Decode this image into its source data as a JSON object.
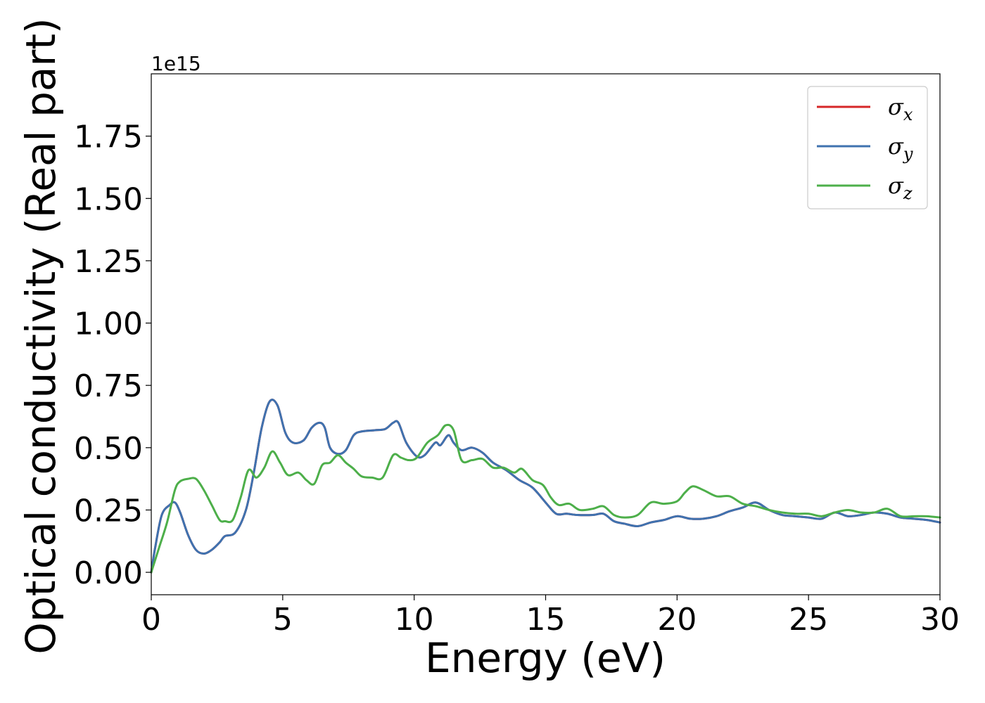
{
  "chart_data": {
    "type": "line",
    "xlabel": "Energy (eV)",
    "ylabel": "Optical conductivity (Real part)",
    "y_multiplier_label": "1e15",
    "xlim": [
      0,
      30
    ],
    "ylim": [
      -0.09,
      2.0
    ],
    "x_ticks": [
      0,
      5,
      10,
      15,
      20,
      25,
      30
    ],
    "x_tick_labels": [
      "0",
      "5",
      "10",
      "15",
      "20",
      "25",
      "30"
    ],
    "y_ticks": [
      0.0,
      0.25,
      0.5,
      0.75,
      1.0,
      1.25,
      1.5,
      1.75
    ],
    "y_tick_labels": [
      "0.00",
      "0.25",
      "0.50",
      "0.75",
      "1.00",
      "1.25",
      "1.50",
      "1.75"
    ],
    "grid": false,
    "legend_position": "top-right",
    "series": [
      {
        "name": "σx",
        "sub": "x",
        "color": "#d62728",
        "x": [
          0,
          0.15,
          0.4,
          0.7,
          0.9,
          1.1,
          1.4,
          1.7,
          2.0,
          2.3,
          2.6,
          2.8,
          3.2,
          3.6,
          3.9,
          4.2,
          4.5,
          4.8,
          5.1,
          5.4,
          5.8,
          6.1,
          6.4,
          6.6,
          6.8,
          7.1,
          7.4,
          7.7,
          8.0,
          8.5,
          8.9,
          9.2,
          9.4,
          9.7,
          10.1,
          10.4,
          10.8,
          11.0,
          11.3,
          11.5,
          11.8,
          12.2,
          12.6,
          13.0,
          13.5,
          14.0,
          14.5,
          15.0,
          15.4,
          15.8,
          16.2,
          16.8,
          17.2,
          17.6,
          18.0,
          18.5,
          19.0,
          19.5,
          20.0,
          20.5,
          21.0,
          21.5,
          22.0,
          22.5,
          23.0,
          23.5,
          24.0,
          24.5,
          25.0,
          25.5,
          26.0,
          26.5,
          27.0,
          27.5,
          28.0,
          28.5,
          29.0,
          29.5,
          30.0
        ],
        "values": [
          0.0,
          0.1,
          0.23,
          0.27,
          0.28,
          0.24,
          0.15,
          0.09,
          0.075,
          0.09,
          0.12,
          0.145,
          0.16,
          0.25,
          0.4,
          0.58,
          0.685,
          0.67,
          0.56,
          0.52,
          0.53,
          0.58,
          0.6,
          0.58,
          0.5,
          0.475,
          0.49,
          0.55,
          0.565,
          0.57,
          0.575,
          0.6,
          0.6,
          0.52,
          0.465,
          0.47,
          0.52,
          0.51,
          0.55,
          0.52,
          0.49,
          0.5,
          0.48,
          0.44,
          0.41,
          0.37,
          0.34,
          0.28,
          0.235,
          0.235,
          0.23,
          0.23,
          0.235,
          0.205,
          0.195,
          0.185,
          0.2,
          0.21,
          0.225,
          0.215,
          0.215,
          0.225,
          0.245,
          0.26,
          0.28,
          0.25,
          0.23,
          0.225,
          0.22,
          0.215,
          0.24,
          0.225,
          0.23,
          0.24,
          0.235,
          0.22,
          0.215,
          0.21,
          0.2
        ]
      },
      {
        "name": "σy",
        "sub": "y",
        "color": "#3f72af",
        "x": [
          0,
          0.15,
          0.4,
          0.7,
          0.9,
          1.1,
          1.4,
          1.7,
          2.0,
          2.3,
          2.6,
          2.8,
          3.2,
          3.6,
          3.9,
          4.2,
          4.5,
          4.8,
          5.1,
          5.4,
          5.8,
          6.1,
          6.4,
          6.6,
          6.8,
          7.1,
          7.4,
          7.7,
          8.0,
          8.5,
          8.9,
          9.2,
          9.4,
          9.7,
          10.1,
          10.4,
          10.8,
          11.0,
          11.3,
          11.5,
          11.8,
          12.2,
          12.6,
          13.0,
          13.5,
          14.0,
          14.5,
          15.0,
          15.4,
          15.8,
          16.2,
          16.8,
          17.2,
          17.6,
          18.0,
          18.5,
          19.0,
          19.5,
          20.0,
          20.5,
          21.0,
          21.5,
          22.0,
          22.5,
          23.0,
          23.5,
          24.0,
          24.5,
          25.0,
          25.5,
          26.0,
          26.5,
          27.0,
          27.5,
          28.0,
          28.5,
          29.0,
          29.5,
          30.0
        ],
        "values": [
          0.0,
          0.1,
          0.23,
          0.27,
          0.28,
          0.24,
          0.15,
          0.09,
          0.075,
          0.09,
          0.12,
          0.145,
          0.16,
          0.25,
          0.4,
          0.58,
          0.685,
          0.67,
          0.56,
          0.52,
          0.53,
          0.58,
          0.6,
          0.58,
          0.5,
          0.475,
          0.49,
          0.55,
          0.565,
          0.57,
          0.575,
          0.6,
          0.6,
          0.52,
          0.465,
          0.47,
          0.52,
          0.51,
          0.55,
          0.52,
          0.49,
          0.5,
          0.48,
          0.44,
          0.41,
          0.37,
          0.34,
          0.28,
          0.235,
          0.235,
          0.23,
          0.23,
          0.235,
          0.205,
          0.195,
          0.185,
          0.2,
          0.21,
          0.225,
          0.215,
          0.215,
          0.225,
          0.245,
          0.26,
          0.28,
          0.25,
          0.23,
          0.225,
          0.22,
          0.215,
          0.24,
          0.225,
          0.23,
          0.24,
          0.235,
          0.22,
          0.215,
          0.21,
          0.2
        ]
      },
      {
        "name": "σz",
        "sub": "z",
        "color": "#4daf4a",
        "x": [
          0,
          0.3,
          0.6,
          0.9,
          1.1,
          1.4,
          1.7,
          2.0,
          2.3,
          2.6,
          2.8,
          3.1,
          3.4,
          3.7,
          4.0,
          4.3,
          4.6,
          4.9,
          5.2,
          5.6,
          5.9,
          6.2,
          6.5,
          6.8,
          7.1,
          7.4,
          7.7,
          8.0,
          8.4,
          8.8,
          9.2,
          9.5,
          9.8,
          10.1,
          10.5,
          10.9,
          11.2,
          11.5,
          11.8,
          12.2,
          12.6,
          13.0,
          13.4,
          13.8,
          14.1,
          14.5,
          14.9,
          15.2,
          15.5,
          15.9,
          16.3,
          16.8,
          17.2,
          17.6,
          18.0,
          18.5,
          19.0,
          19.5,
          20.0,
          20.3,
          20.6,
          21.0,
          21.5,
          22.0,
          22.5,
          23.0,
          23.5,
          24.0,
          24.5,
          25.0,
          25.5,
          26.0,
          26.5,
          27.0,
          27.5,
          28.0,
          28.5,
          29.0,
          29.5,
          30.0
        ],
        "values": [
          0.0,
          0.1,
          0.2,
          0.33,
          0.365,
          0.375,
          0.375,
          0.33,
          0.27,
          0.21,
          0.205,
          0.21,
          0.3,
          0.41,
          0.38,
          0.42,
          0.485,
          0.44,
          0.39,
          0.4,
          0.37,
          0.355,
          0.43,
          0.44,
          0.47,
          0.44,
          0.415,
          0.385,
          0.38,
          0.38,
          0.47,
          0.46,
          0.45,
          0.46,
          0.52,
          0.55,
          0.59,
          0.57,
          0.45,
          0.45,
          0.455,
          0.42,
          0.42,
          0.4,
          0.415,
          0.37,
          0.35,
          0.3,
          0.27,
          0.275,
          0.25,
          0.255,
          0.265,
          0.23,
          0.22,
          0.23,
          0.28,
          0.275,
          0.285,
          0.32,
          0.345,
          0.33,
          0.305,
          0.305,
          0.275,
          0.265,
          0.25,
          0.24,
          0.235,
          0.235,
          0.225,
          0.24,
          0.25,
          0.24,
          0.24,
          0.255,
          0.225,
          0.225,
          0.225,
          0.22
        ]
      }
    ]
  }
}
